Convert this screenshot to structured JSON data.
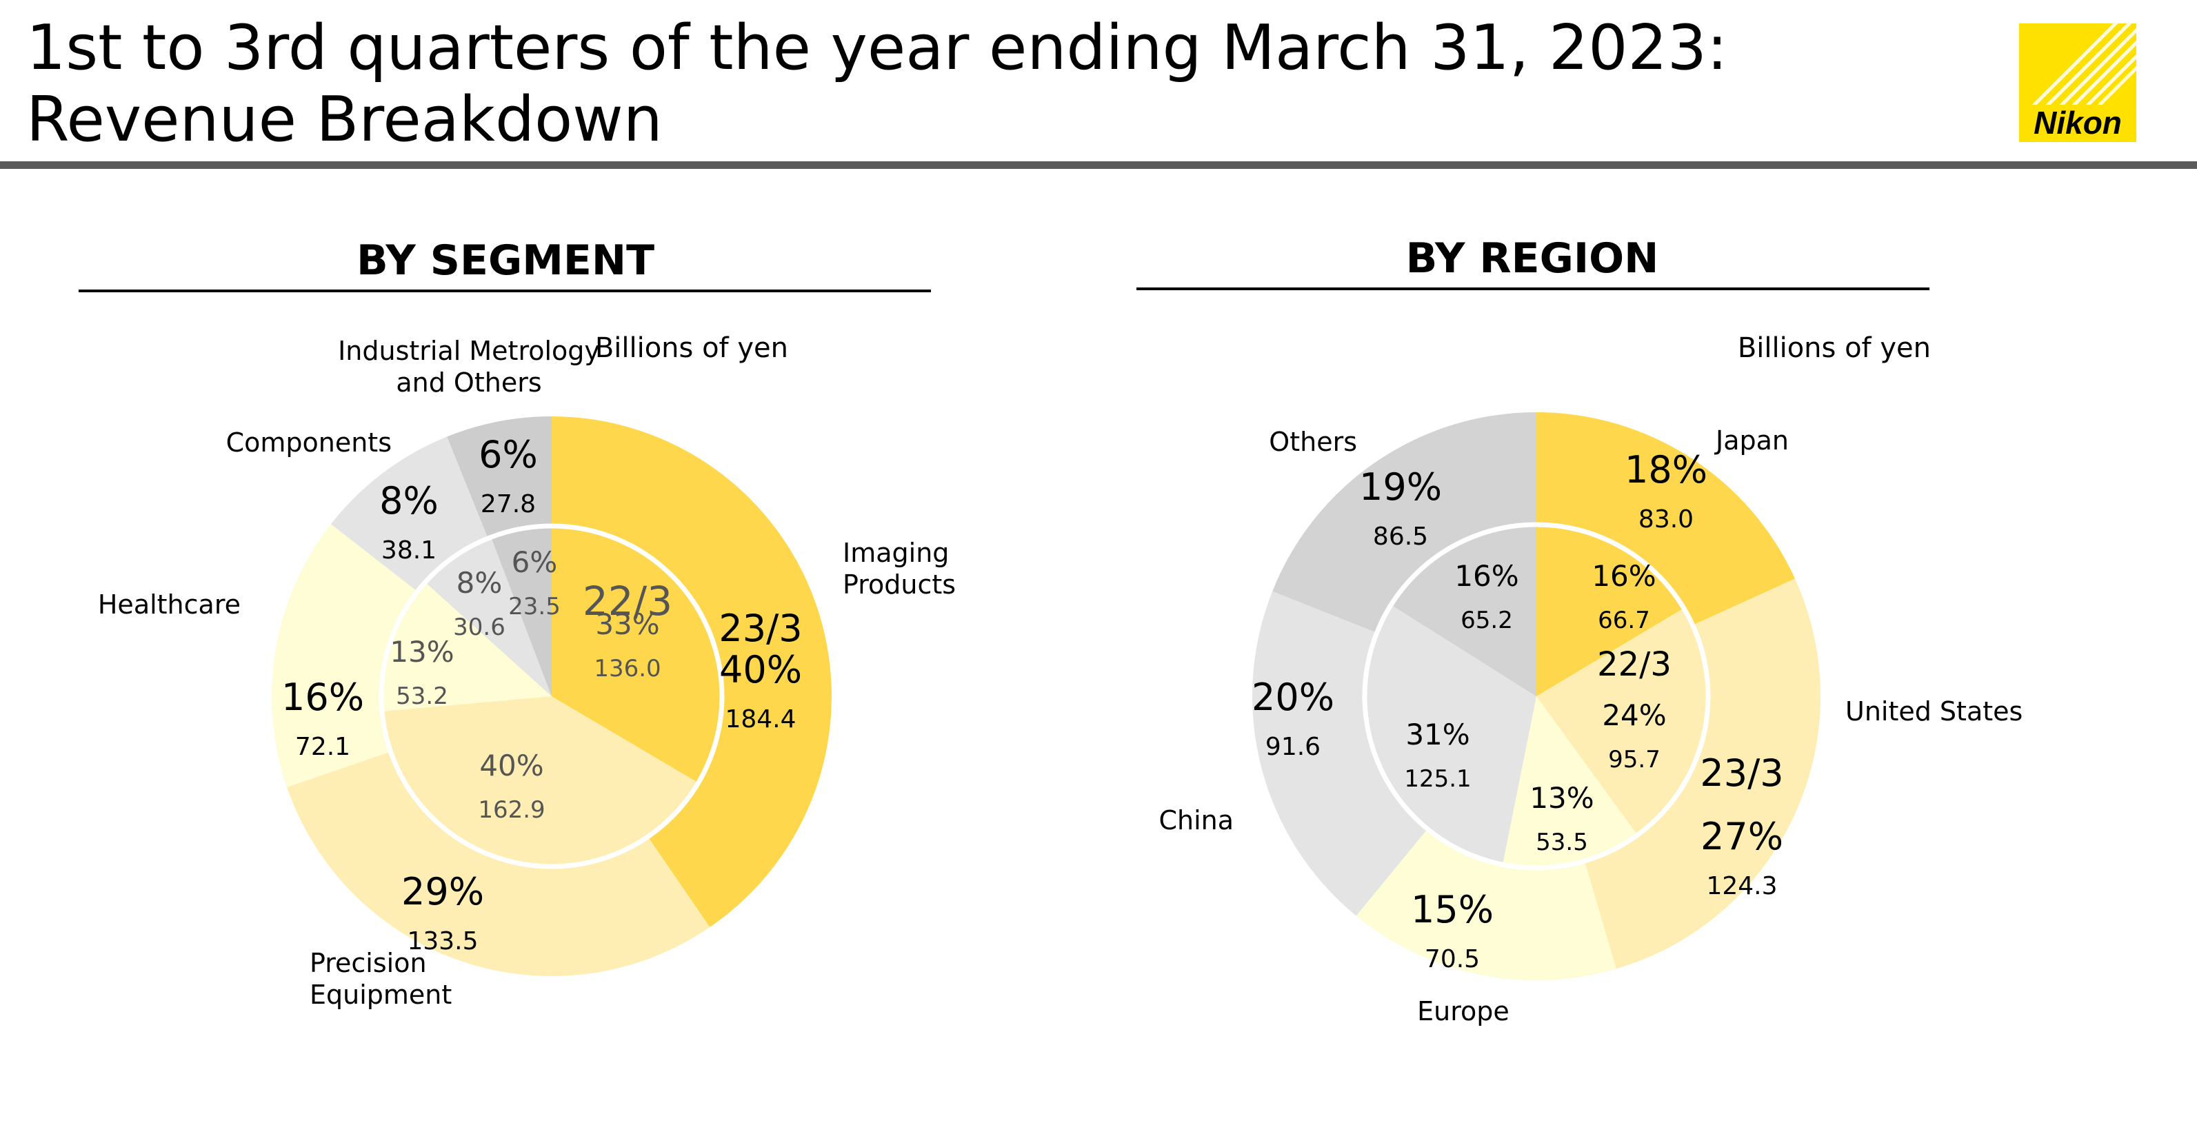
{
  "title_line1": "1st to 3rd quarters of the year ending March 31, 2023:",
  "title_line2": "Revenue Breakdown",
  "logo_text": "Nikon",
  "chart_data": [
    {
      "type": "pie",
      "title": "BY SEGMENT",
      "unit_label": "Billions of yen",
      "series": [
        {
          "name": "23/3",
          "ring": "outer",
          "labels": [
            "Imaging Products",
            "Precision Equipment",
            "Healthcare",
            "Components",
            "Industrial Metrology and Others"
          ],
          "values": [
            184.4,
            133.5,
            72.1,
            38.1,
            27.8
          ],
          "percents": [
            "40%",
            "29%",
            "16%",
            "8%",
            "6%"
          ],
          "colors": [
            "#FFD74D",
            "#FFEEB4",
            "#FFFDD5",
            "#E4E4E4",
            "#CDCDCD"
          ]
        },
        {
          "name": "22/3",
          "ring": "inner",
          "labels": [
            "Imaging Products",
            "Precision Equipment",
            "Healthcare",
            "Components",
            "Industrial Metrology and Others"
          ],
          "values": [
            136.0,
            162.9,
            53.2,
            30.6,
            23.5
          ],
          "percents": [
            "33%",
            "40%",
            "13%",
            "8%",
            "6%"
          ],
          "colors": [
            "#FFD74D",
            "#FFEEB4",
            "#FFFDD5",
            "#E4E4E4",
            "#CDCDCD"
          ]
        }
      ]
    },
    {
      "type": "pie",
      "title": "BY REGION",
      "unit_label": "Billions of yen",
      "series": [
        {
          "name": "23/3",
          "ring": "outer",
          "labels": [
            "Japan",
            "United States",
            "Europe",
            "China",
            "Others"
          ],
          "values": [
            83.0,
            124.3,
            70.5,
            91.6,
            86.5
          ],
          "percents": [
            "18%",
            "27%",
            "15%",
            "20%",
            "19%"
          ],
          "colors": [
            "#FFD74D",
            "#FFEEB4",
            "#FFFDD5",
            "#E4E4E4",
            "#D3D3D3"
          ]
        },
        {
          "name": "22/3",
          "ring": "inner",
          "labels": [
            "Japan",
            "United States",
            "Europe",
            "China",
            "Others"
          ],
          "values": [
            66.7,
            95.7,
            53.5,
            125.1,
            65.2
          ],
          "percents": [
            "16%",
            "24%",
            "13%",
            "31%",
            "16%"
          ],
          "colors": [
            "#FFD74D",
            "#FFEEB4",
            "#FFFDD5",
            "#E4E4E4",
            "#D3D3D3"
          ]
        }
      ]
    }
  ]
}
